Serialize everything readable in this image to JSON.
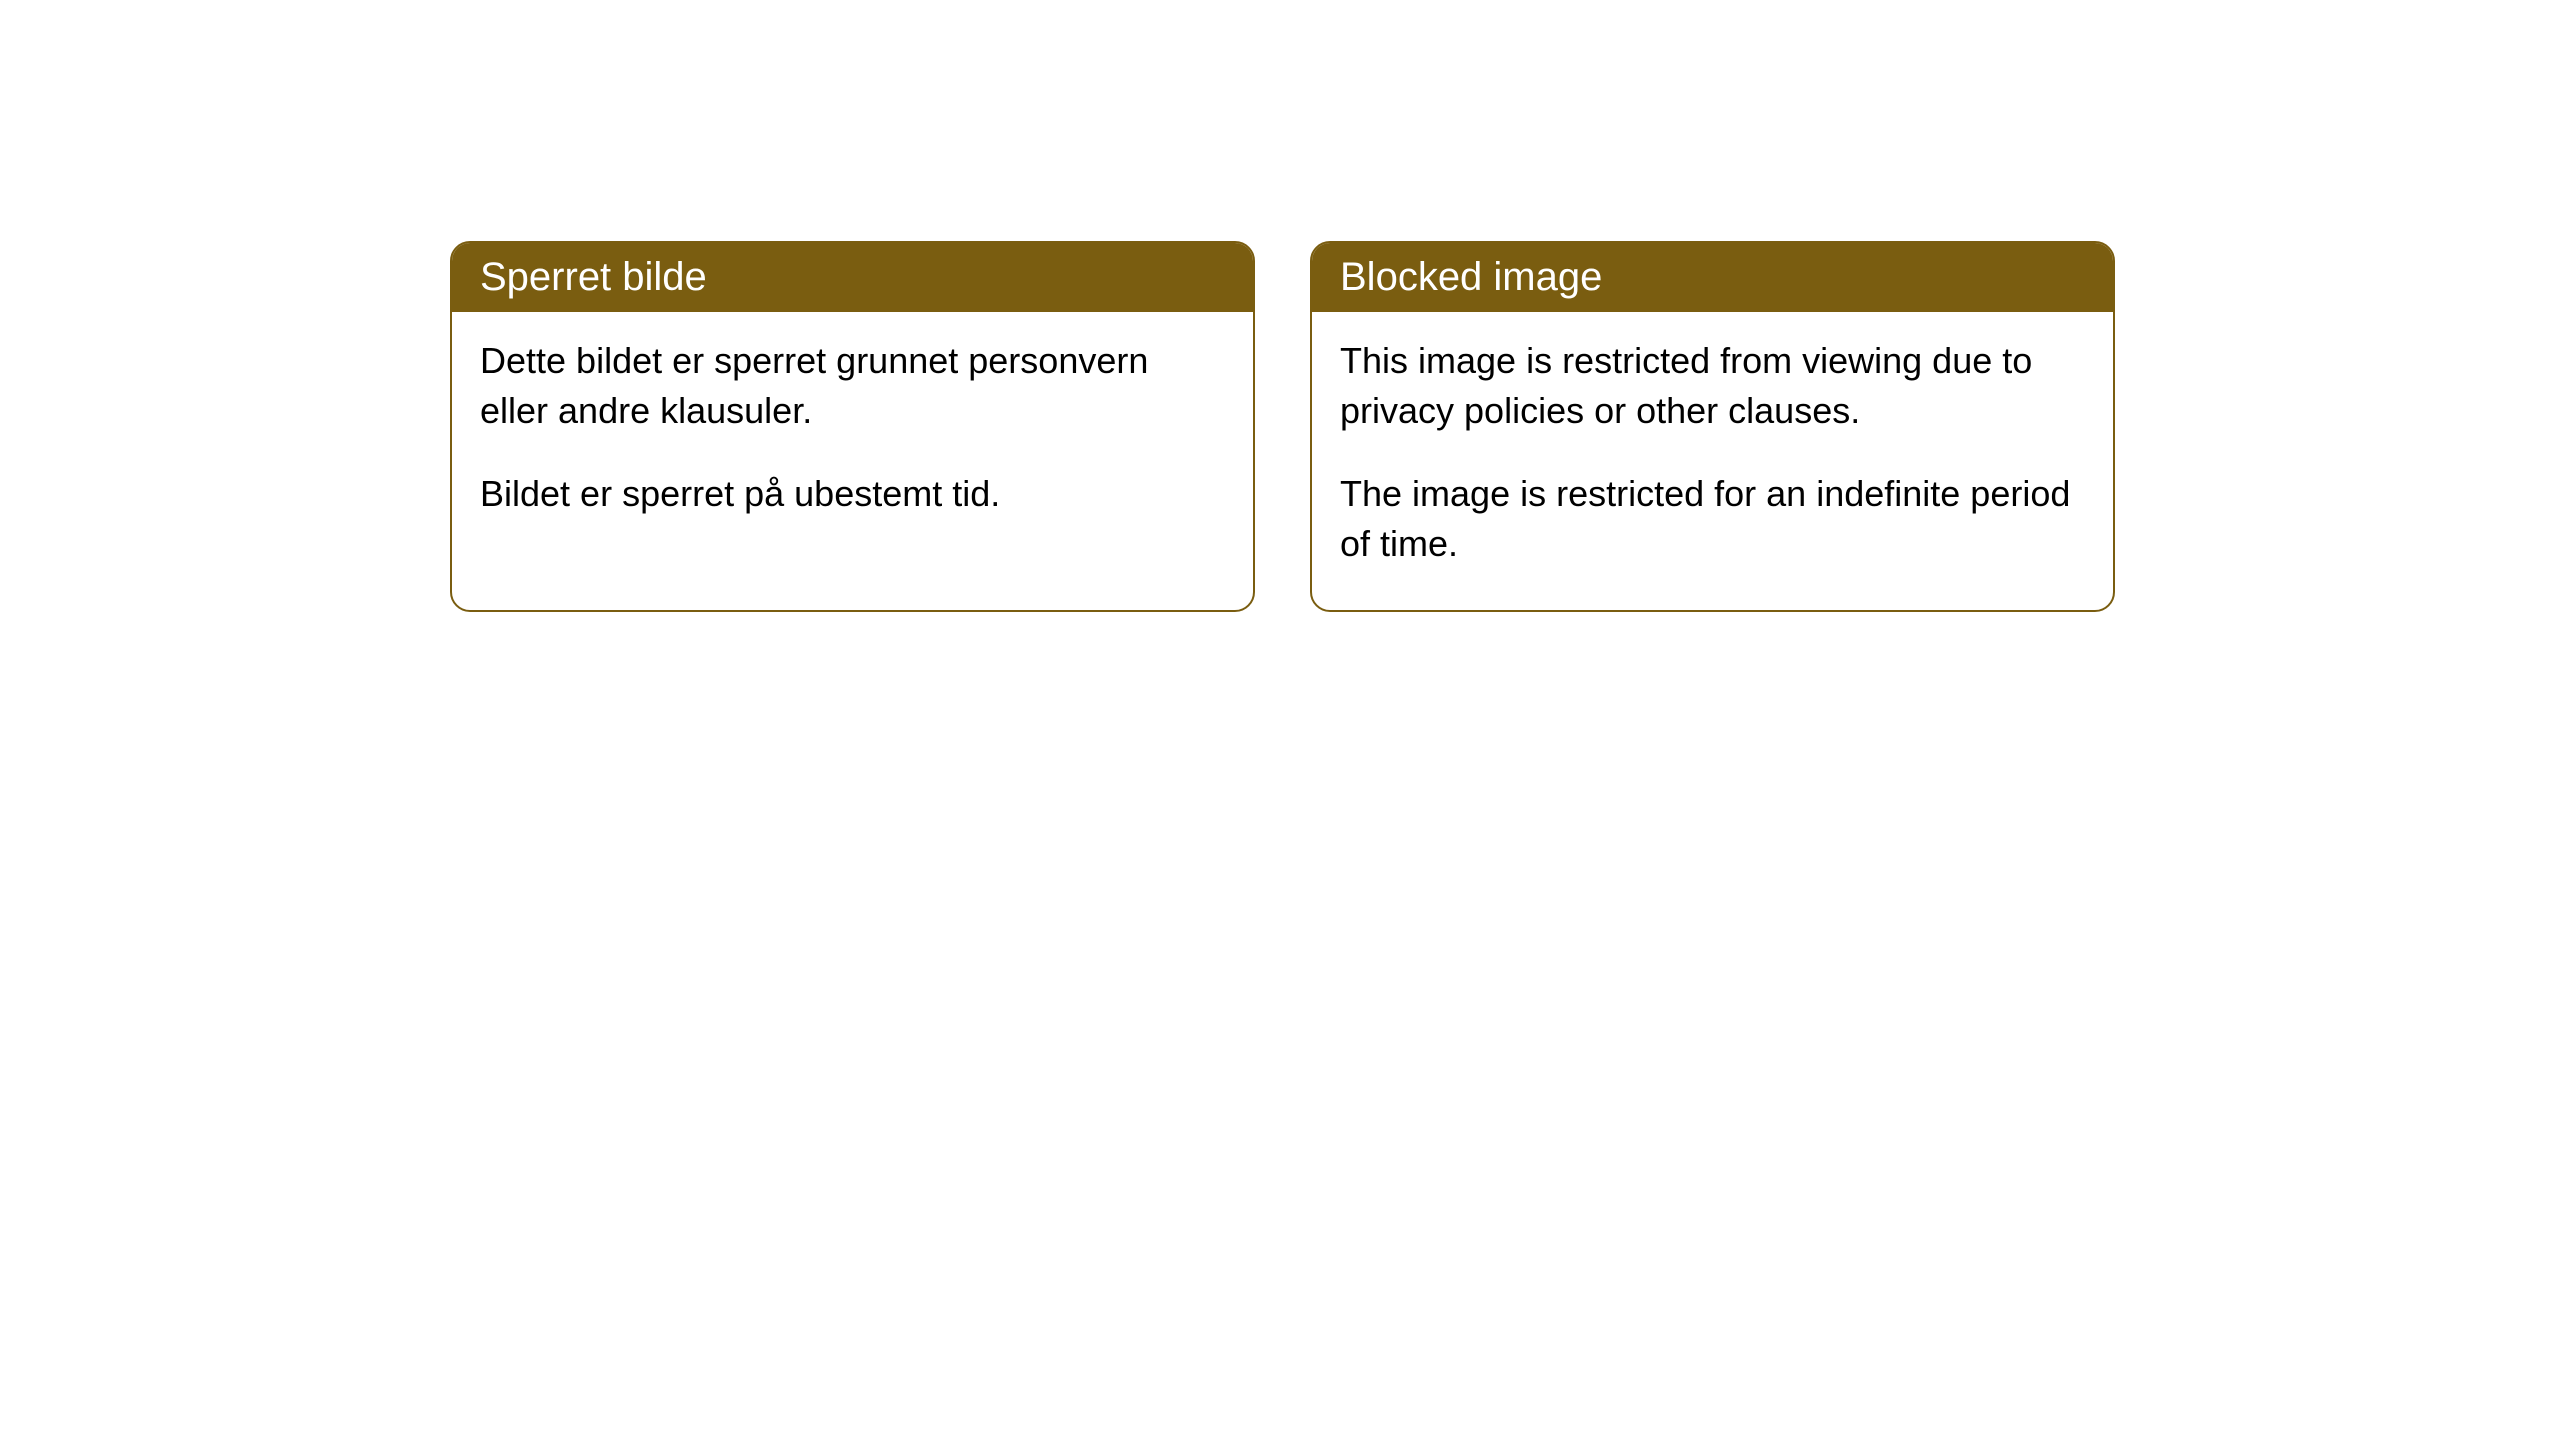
{
  "cards": [
    {
      "title": "Sperret bilde",
      "paragraph1": "Dette bildet er sperret grunnet personvern eller andre klausuler.",
      "paragraph2": "Bildet er sperret på ubestemt tid."
    },
    {
      "title": "Blocked image",
      "paragraph1": "This image is restricted from viewing due to privacy policies or other clauses.",
      "paragraph2": "The image is restricted for an indefinite period of time."
    }
  ],
  "styling": {
    "header_background": "#7a5d10",
    "header_text_color": "#ffffff",
    "card_border_color": "#7a5d10",
    "card_background": "#ffffff",
    "body_text_color": "#000000",
    "page_background": "#ffffff",
    "border_radius": 20,
    "header_fontsize": 40,
    "body_fontsize": 36
  }
}
